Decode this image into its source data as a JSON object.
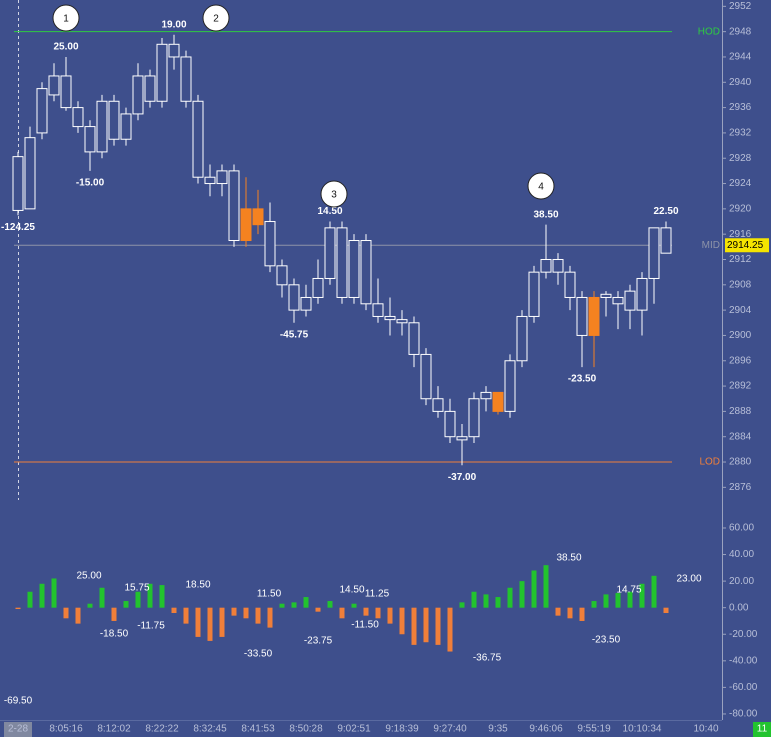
{
  "chart_data": {
    "type": "candlestick",
    "background": "#3e4f8c",
    "candle_color": "#ffffff",
    "colors": [
      "hollow",
      "hollow",
      "hollow",
      "hollow",
      "hollow",
      "hollow",
      "hollow",
      "hollow",
      "hollow",
      "hollow",
      "hollow",
      "hollow",
      "hollow",
      "hollow",
      "hollow",
      "hollow",
      "hollow",
      "hollow",
      "hollow",
      "#f58220",
      "#f58220",
      "hollow",
      "hollow",
      "hollow",
      "hollow",
      "hollow",
      "hollow",
      "hollow",
      "hollow",
      "hollow",
      "hollow",
      "hollow",
      "hollow",
      "hollow",
      "hollow",
      "hollow",
      "hollow",
      "hollow",
      "hollow",
      "hollow",
      "#f58220",
      "hollow",
      "hollow",
      "hollow",
      "hollow",
      "hollow",
      "hollow",
      "hollow",
      "#f58220",
      "hollow",
      "hollow",
      "hollow",
      "hollow",
      "hollow",
      "hollow"
    ],
    "open": [
      2919.75,
      2920,
      2932,
      2938,
      2941,
      2936,
      2933,
      2929,
      2937,
      2931,
      2935,
      2941,
      2937,
      2946,
      2944,
      2937,
      2925,
      2924,
      2926,
      2920,
      2920,
      2918,
      2911,
      2908,
      2904,
      2906,
      2909,
      2917,
      2906,
      2915,
      2905,
      2903,
      2902.5,
      2902,
      2897,
      2890,
      2888,
      2884,
      2884,
      2890,
      2891,
      2888,
      2896,
      2903,
      2910,
      2912,
      2910,
      2906,
      2906,
      2906,
      2906,
      2904,
      2904,
      2909,
      2913
    ],
    "high": [
      2929,
      2933,
      2940,
      2943,
      2944,
      2937,
      2934,
      2938,
      2938,
      2936,
      2943,
      2942,
      2947,
      2947.5,
      2945,
      2938,
      2927,
      2927,
      2927,
      2925,
      2923,
      2921,
      2912,
      2909,
      2908,
      2912,
      2918,
      2918,
      2916,
      2916,
      2909,
      2906,
      2904,
      2903,
      2898,
      2892,
      2890,
      2886,
      2891,
      2892,
      2891,
      2897,
      2904,
      2911,
      2917.5,
      2913,
      2911,
      2907,
      2907,
      2907,
      2907,
      2908,
      2910,
      2917,
      2918
    ],
    "low": [
      2919,
      2920,
      2931,
      2937,
      2935.5,
      2932,
      2926,
      2928,
      2930,
      2930,
      2934,
      2936,
      2936,
      2942,
      2936,
      2924,
      2922,
      2922,
      2914,
      2914,
      2916,
      2910,
      2906,
      2902,
      2903,
      2905,
      2908,
      2905,
      2905,
      2904,
      2902,
      2900,
      2900,
      2895,
      2889,
      2887,
      2883,
      2879.5,
      2883,
      2888,
      2887.5,
      2887,
      2895,
      2902,
      2909,
      2908,
      2904,
      2895,
      2895,
      2903,
      2901,
      2901,
      2900,
      2905,
      2913
    ],
    "close": [
      2928.25,
      2931.25,
      2939,
      2941,
      2936,
      2933,
      2929,
      2937,
      2931,
      2935,
      2941,
      2937,
      2946,
      2944,
      2937,
      2925,
      2924,
      2926,
      2915,
      2915,
      2917.5,
      2911,
      2908,
      2904,
      2906,
      2909,
      2917,
      2906,
      2915,
      2905,
      2903,
      2902.5,
      2902,
      2897,
      2890,
      2888,
      2884,
      2883.5,
      2890,
      2891,
      2888,
      2896,
      2903,
      2910,
      2912,
      2910,
      2906,
      2900,
      2900,
      2906.5,
      2905,
      2907,
      2909,
      2917,
      2917
    ],
    "price_labels": [
      "-124.25",
      "25.00",
      "-15.00",
      "19.00",
      "-45.75",
      "14.50",
      "-37.00",
      "38.50",
      "-23.50",
      "22.50"
    ],
    "markers": [
      "1",
      "2",
      "3",
      "4"
    ],
    "levels": [
      {
        "name": "HOD",
        "value": 2948,
        "color": "#2ecc40"
      },
      {
        "name": "MID",
        "value": 2914.25,
        "color": "#8d93a8",
        "value_label": "2914.25"
      },
      {
        "name": "LOD",
        "value": 2880,
        "color": "#f07f3a"
      }
    ],
    "ylim": [
      2874,
      2953
    ],
    "yticks": [
      2876,
      2880,
      2884,
      2888,
      2892,
      2896,
      2900,
      2904,
      2908,
      2912,
      2916,
      2920,
      2924,
      2928,
      2932,
      2936,
      2940,
      2944,
      2948,
      2952
    ],
    "indicator": {
      "values": [
        -1,
        12,
        18,
        22,
        -8,
        -12,
        3,
        15,
        -10,
        5,
        12,
        18,
        17,
        -4,
        -12,
        -22,
        -25,
        -22,
        -6,
        -8,
        -12,
        -15,
        3,
        4,
        8,
        -3,
        5,
        -8,
        3,
        -6,
        -8,
        -12,
        -20,
        -28,
        -26,
        -28,
        -33,
        4,
        12,
        10,
        8,
        15,
        20,
        28,
        32,
        -6,
        -8,
        -10,
        5,
        10,
        11,
        12,
        18,
        24,
        -4
      ],
      "positive_color": "#22c32e",
      "negative_color": "#f07f3a",
      "labels": [
        "25.00",
        "-18.50",
        "15.75",
        "-11.75",
        "18.50",
        "-33.50",
        "11.50",
        "-23.75",
        "14.50",
        "11.25",
        "-11.50",
        "-36.75",
        "38.50",
        "-23.50",
        "14.75",
        "23.00",
        "-69.50"
      ]
    },
    "y2lim": [
      -85,
      77
    ],
    "y2ticks": [
      {
        "value": 60,
        "label": "60.00"
      },
      {
        "value": 40,
        "label": "40.00"
      },
      {
        "value": 20,
        "label": "20.00"
      },
      {
        "value": 0,
        "label": "0.00"
      },
      {
        "value": -20,
        "label": "-20.00"
      },
      {
        "value": -40,
        "label": "-40.00"
      },
      {
        "value": -60,
        "label": "-60.00"
      },
      {
        "value": -80,
        "label": "-80.00"
      }
    ],
    "x_labels": [
      "2-28",
      "8:05:16",
      "8:12:02",
      "8:22:22",
      "8:32:45",
      "8:41:53",
      "8:50:28",
      "9:02:51",
      "9:18:39",
      "9:27:40",
      "9:35",
      "9:46:06",
      "9:55:19",
      "10:10:34",
      "10:40"
    ],
    "corner_label": "11"
  }
}
